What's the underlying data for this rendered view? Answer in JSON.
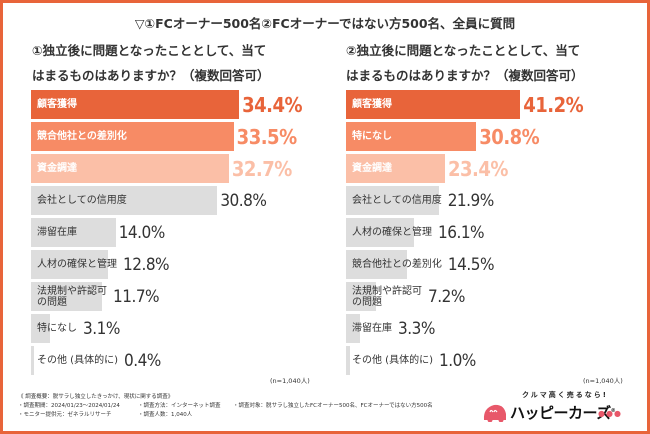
{
  "main_title": "▽①FCオーナー500名②FCオーナーではない方500名、全員に質問",
  "colors": {
    "accent": "#e8643a",
    "rank1": "#e8643a",
    "rank2": "#f78b65",
    "rank3": "#fbbfa7",
    "other": "#dddddd",
    "frame": "#e8643a"
  },
  "chart_data": [
    {
      "type": "bar",
      "orientation": "horizontal",
      "title": "①独立後に問題となったこととして、当てはまるものはありますか？（複数回答可）",
      "title_lines": [
        "①独立後に問題となったこととして、当て",
        "はまるものはありますか？（複数回答可）"
      ],
      "categories": [
        "顧客獲得",
        "競合他社との差別化",
        "資金調達",
        "会社としての信用度",
        "滞留在庫",
        "人材の確保と管理",
        "法規制や許認可の問題",
        "特になし",
        "その他 (具体的に)"
      ],
      "category_lines": [
        [
          "顧客獲得"
        ],
        [
          "競合他社との差別化"
        ],
        [
          "資金調達"
        ],
        [
          "会社としての信用度"
        ],
        [
          "滞留在庫"
        ],
        [
          "人材の確保と管理"
        ],
        [
          "法規制や許認可",
          "の問題"
        ],
        [
          "特になし"
        ],
        [
          "その他 (具体的に)"
        ]
      ],
      "values": [
        34.4,
        33.5,
        32.7,
        30.8,
        14.0,
        12.8,
        11.7,
        3.1,
        0.4
      ],
      "value_labels": [
        "34.4%",
        "33.5%",
        "32.7%",
        "30.8%",
        "14.0%",
        "12.8%",
        "11.7%",
        "3.1%",
        "0.4%"
      ],
      "unit": "%",
      "note": "(n=1,040人)"
    },
    {
      "type": "bar",
      "orientation": "horizontal",
      "title": "②独立後に問題となったこととして、当てはまるものはありますか？（複数回答可）",
      "title_lines": [
        "②独立後に問題となったこととして、当て",
        "はまるものはありますか？（複数回答可）"
      ],
      "categories": [
        "顧客獲得",
        "特になし",
        "資金調達",
        "会社としての信用度",
        "人材の確保と管理",
        "競合他社との差別化",
        "法規制や許認可の問題",
        "滞留在庫",
        "その他 (具体的に)"
      ],
      "category_lines": [
        [
          "顧客獲得"
        ],
        [
          "特になし"
        ],
        [
          "資金調達"
        ],
        [
          "会社としての信用度"
        ],
        [
          "人材の確保と管理"
        ],
        [
          "競合他社との差別化"
        ],
        [
          "法規制や許認可",
          "の問題"
        ],
        [
          "滞留在庫"
        ],
        [
          "その他 (具体的に)"
        ]
      ],
      "values": [
        41.2,
        30.8,
        23.4,
        21.9,
        16.1,
        14.5,
        7.2,
        3.3,
        1.0
      ],
      "value_labels": [
        "41.2%",
        "30.8%",
        "23.4%",
        "21.9%",
        "16.1%",
        "14.5%",
        "7.2%",
        "3.3%",
        "1.0%"
      ],
      "unit": "%",
      "note": "(n=1,040人)"
    }
  ],
  "footer": {
    "summary": "《 調査概要：脱サラし独立したきっかけ、現状に関する調査》",
    "period": "・調査期間：2024/01/23～2024/01/24",
    "method": "・調査方法：インターネット調査",
    "target": "・調査対象：脱サラし独立したFCオーナー500名、FCオーナーではない方500名",
    "provider": "・モニター提供元：ゼネラルリサーチ",
    "respondents": "・調査人数：1,040人"
  },
  "logo": {
    "tagline": "クルマ高く売るなら!",
    "brand": "ハッピーカーズ",
    "registered": "®",
    "dots": "●●●"
  }
}
